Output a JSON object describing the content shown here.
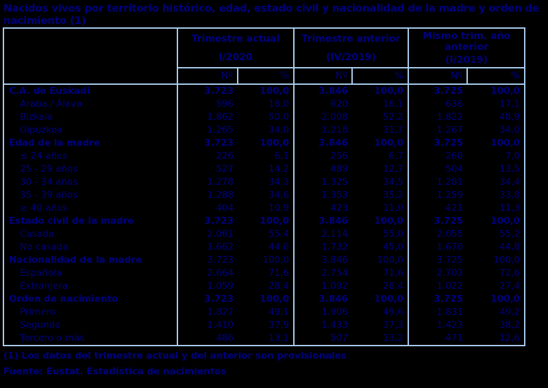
{
  "chart_data": {
    "type": "table",
    "title": "Nacidos vivos por territorio histórico, edad, estado civil y nacionalidad de la madre y orden de nacimiento (1)",
    "column_groups": [
      {
        "title": "Trimestre actual",
        "period": "I/2020"
      },
      {
        "title": "Trimestre anterior",
        "period": "(IV/2019)"
      },
      {
        "title": "Mismo trim. año anterior",
        "period": "(I/2019)"
      }
    ],
    "sub_columns": [
      "Nº",
      "%"
    ],
    "rows": [
      {
        "label": "C.A. de Euskadi",
        "section": true,
        "values_bold": true,
        "values": [
          "3.723",
          "100,0",
          "3.846",
          "100,0",
          "3.725",
          "100,0"
        ]
      },
      {
        "label": "Araba / Álava",
        "section": false,
        "values_bold": false,
        "values": [
          "596",
          "16,0",
          "620",
          "16,1",
          "636",
          "17,1"
        ]
      },
      {
        "label": "Bizkaia",
        "section": false,
        "values_bold": false,
        "values": [
          "1.862",
          "50,0",
          "2.008",
          "52,2",
          "1.822",
          "48,9"
        ]
      },
      {
        "label": "Gipuzkoa",
        "section": false,
        "values_bold": false,
        "values": [
          "1.265",
          "34,0",
          "1.218",
          "31,7",
          "1.267",
          "34,0"
        ]
      },
      {
        "label": "Edad de la madre",
        "section": true,
        "values_bold": true,
        "values": [
          "3.723",
          "100,0",
          "3.846",
          "100,0",
          "3.725",
          "100,0"
        ]
      },
      {
        "label": "≤ 24 años",
        "section": false,
        "values_bold": false,
        "values": [
          "226",
          "6,1",
          "256",
          "6,7",
          "260",
          "7,0"
        ]
      },
      {
        "label": "25 - 29 años",
        "section": false,
        "values_bold": false,
        "values": [
          "527",
          "14,2",
          "489",
          "12,7",
          "504",
          "13,5"
        ]
      },
      {
        "label": "30 - 34 años",
        "section": false,
        "values_bold": false,
        "values": [
          "1.278",
          "34,3",
          "1.325",
          "34,5",
          "1.281",
          "34,4"
        ]
      },
      {
        "label": "35 - 39 años",
        "section": false,
        "values_bold": false,
        "values": [
          "1.288",
          "34,6",
          "1.353",
          "35,2",
          "1.259",
          "33,8"
        ]
      },
      {
        "label": "≥ 40 años",
        "section": false,
        "values_bold": false,
        "values": [
          "404",
          "10,9",
          "423",
          "11,0",
          "421",
          "11,3"
        ]
      },
      {
        "label": "Estado civil de la madre",
        "section": true,
        "values_bold": true,
        "values": [
          "3.723",
          "100,0",
          "3.846",
          "100,0",
          "3.725",
          "100,0"
        ]
      },
      {
        "label": "Casada",
        "section": false,
        "values_bold": false,
        "values": [
          "2.061",
          "55,4",
          "2.114",
          "55,0",
          "2.055",
          "55,2"
        ]
      },
      {
        "label": "No casada",
        "section": false,
        "values_bold": false,
        "values": [
          "1.662",
          "44,6",
          "1.732",
          "45,0",
          "1.670",
          "44,8"
        ]
      },
      {
        "label": "Nacionalidad de la madre",
        "section": true,
        "values_bold": false,
        "values": [
          "3.723",
          "100,0",
          "3.846",
          "100,0",
          "3.725",
          "100,0"
        ]
      },
      {
        "label": "Española",
        "section": false,
        "values_bold": false,
        "values": [
          "2.664",
          "71,6",
          "2.754",
          "71,6",
          "2.703",
          "72,6"
        ]
      },
      {
        "label": "Extranjera",
        "section": false,
        "values_bold": false,
        "values": [
          "1.059",
          "28,4",
          "1.092",
          "28,4",
          "1.022",
          "27,4"
        ]
      },
      {
        "label": "Orden de nacimiento",
        "section": true,
        "values_bold": true,
        "values": [
          "3.723",
          "100,0",
          "3.846",
          "100,0",
          "3.725",
          "100,0"
        ]
      },
      {
        "label": "Primero",
        "section": false,
        "values_bold": false,
        "values": [
          "1.827",
          "49,1",
          "1.906",
          "49,6",
          "1.831",
          "49,2"
        ]
      },
      {
        "label": "Segundo",
        "section": false,
        "values_bold": false,
        "values": [
          "1.410",
          "37,9",
          "1.433",
          "37,3",
          "1.423",
          "38,2"
        ]
      },
      {
        "label": "Tercero o más",
        "section": false,
        "values_bold": false,
        "values": [
          "486",
          "13,1",
          "507",
          "13,2",
          "471",
          "12,6"
        ]
      }
    ],
    "footnotes": [
      "(1) Los datos del trimestre actual y del anterior son provisionales",
      "Fuente: Eustat. Estadística de nacimientos"
    ],
    "layout_hints": {
      "grid": "light-blue cell borders, no horizontal lines in body",
      "legend_position": "none"
    },
    "colors": {
      "background": "#000000",
      "text": "#000080",
      "border": "#A9CCEE"
    }
  }
}
